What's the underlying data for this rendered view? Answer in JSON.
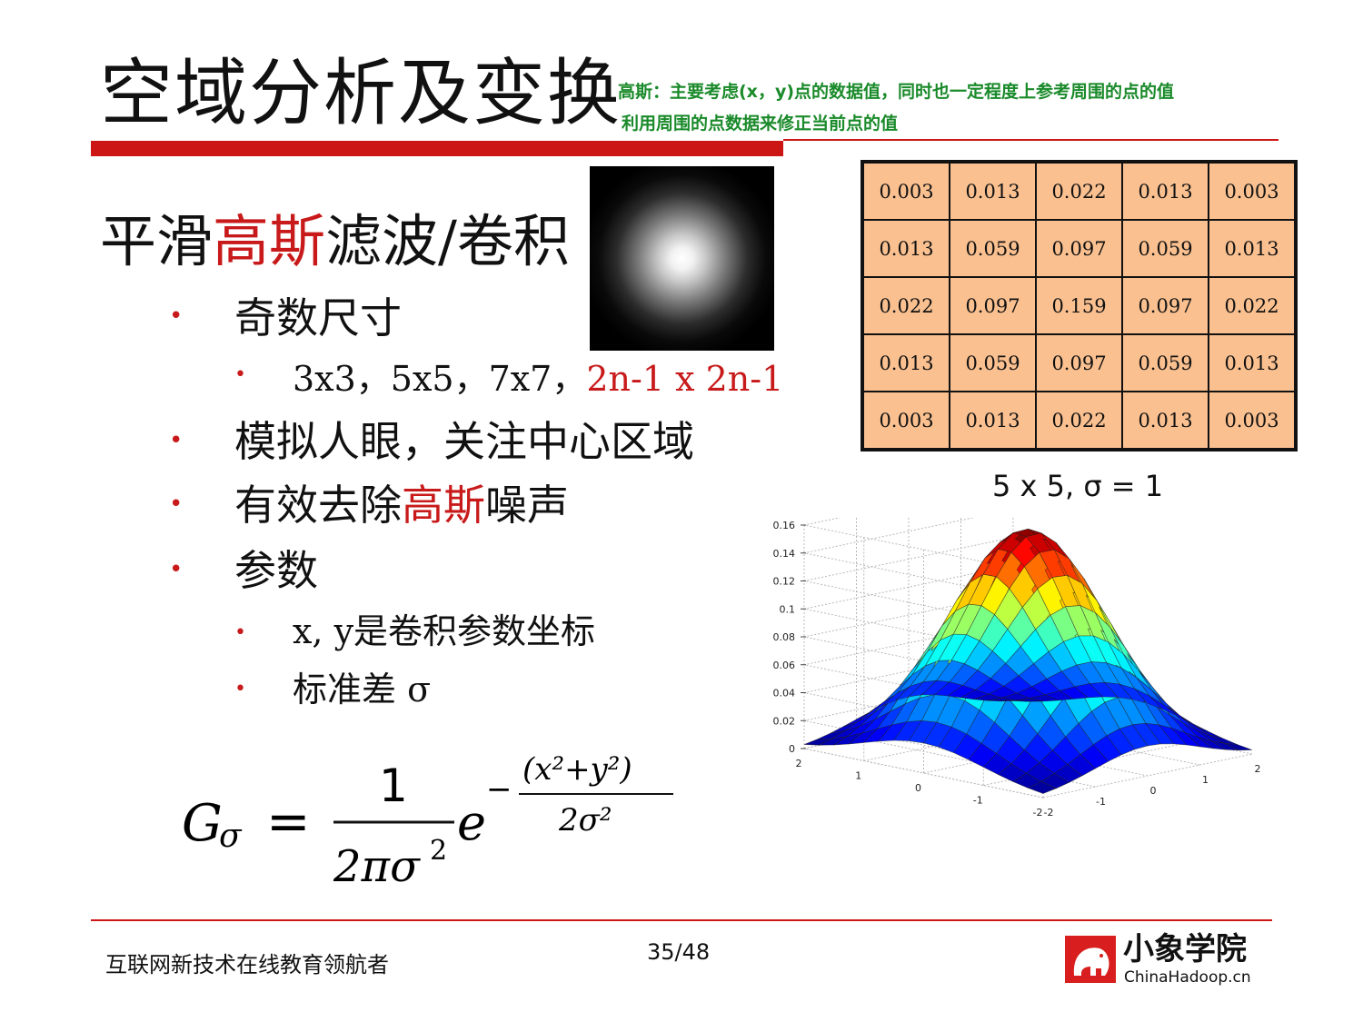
{
  "header": {
    "title": "空域分析及变换",
    "note_line1": "高斯：主要考虑(x，y)点的数据值，同时也一定程度上参考周围的点的值",
    "note_line2": "利用周围的点数据来修正当前点的值"
  },
  "heading": {
    "part1": "平滑",
    "part2_red": "高斯",
    "part3": "滤波/卷积"
  },
  "bullets": {
    "odd_size": "奇数尺寸",
    "sizes_black": "3x3，5x5，7x7，",
    "sizes_red": "2n-1 x 2n-1",
    "human_eye": "模拟人眼，关注中心区域",
    "denoise_part1": "有效去除",
    "denoise_part2_red": "高斯",
    "denoise_part3": "噪声",
    "params": "参数",
    "xy": "x, y是卷积参数坐标",
    "sigma": "标准差 σ"
  },
  "kernel": {
    "rows": [
      [
        "0.003",
        "0.013",
        "0.022",
        "0.013",
        "0.003"
      ],
      [
        "0.013",
        "0.059",
        "0.097",
        "0.059",
        "0.013"
      ],
      [
        "0.022",
        "0.097",
        "0.159",
        "0.097",
        "0.022"
      ],
      [
        "0.013",
        "0.059",
        "0.097",
        "0.059",
        "0.013"
      ],
      [
        "0.003",
        "0.013",
        "0.022",
        "0.013",
        "0.003"
      ]
    ],
    "caption": "5 x 5, σ = 1",
    "cell_color": "#fac090"
  },
  "chart_data": {
    "type": "surface",
    "function": "gaussian_2d",
    "sigma": 1,
    "x_ticks": [
      "-2",
      "-1",
      "0",
      "1",
      "2"
    ],
    "y_ticks": [
      "-2",
      "-1",
      "0",
      "1",
      "2"
    ],
    "z_ticks": [
      "0",
      "0.02",
      "0.04",
      "0.06",
      "0.08",
      "0.1",
      "0.12",
      "0.14",
      "0.16"
    ],
    "zlim": [
      0,
      0.16
    ],
    "peak": 0.159,
    "grid": true
  },
  "formula": {
    "lhs": "G",
    "lhs_sub": "σ",
    "eq": "=",
    "numerator": "1",
    "denominator": "2πσ",
    "denominator_sup": "2",
    "base": "e",
    "minus": "−",
    "exp_numerator": "(x²+y²)",
    "exp_denominator": "2σ²"
  },
  "footer": {
    "left": "互联网新技术在线教育领航者",
    "page": "35/48",
    "logo_name": "小象学院",
    "logo_url": "ChinaHadoop.cn"
  },
  "colors": {
    "accent_red": "#cc1515",
    "note_green": "#1a8a2a"
  }
}
